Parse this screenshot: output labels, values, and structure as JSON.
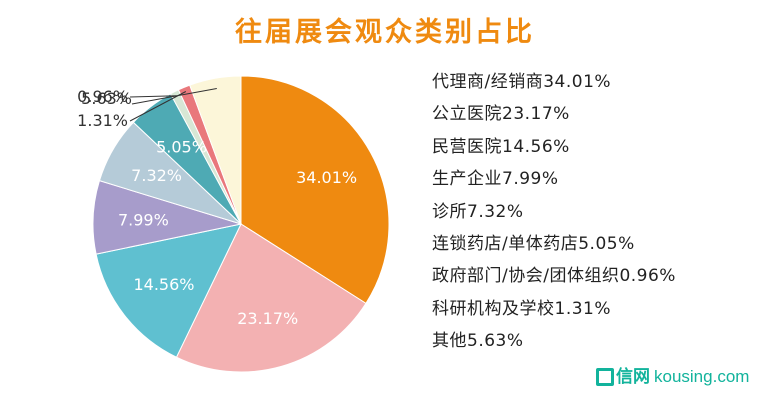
{
  "chart_data": {
    "type": "pie",
    "title": "往届展会观众类别占比",
    "slices": [
      {
        "label": "代理商/经销商",
        "value": 34.01,
        "display": "34.01%",
        "legend": "代理商/经销商34.01%",
        "color": "#ef8a10"
      },
      {
        "label": "公立医院",
        "value": 23.17,
        "display": "23.17%",
        "legend": "公立医院23.17%",
        "color": "#f3b1b2"
      },
      {
        "label": "民营医院",
        "value": 14.56,
        "display": "14.56%",
        "legend": "民营医院14.56%",
        "color": "#5fc0d0"
      },
      {
        "label": "生产企业",
        "value": 7.99,
        "display": "7.99%",
        "legend": "生产企业7.99%",
        "color": "#a79ccb"
      },
      {
        "label": "诊所",
        "value": 7.32,
        "display": "7.32%",
        "legend": "诊所7.32%",
        "color": "#b5cbd8"
      },
      {
        "label": "连锁药店/单体药店",
        "value": 5.05,
        "display": "5.05%",
        "legend": "连锁药店/单体药店5.05%",
        "color": "#4eaab4"
      },
      {
        "label": "政府部门/协会/团体组织",
        "value": 0.96,
        "display": "0.96%",
        "legend": "政府部门/协会/团体组织0.96%",
        "color": "#d7e7d5"
      },
      {
        "label": "科研机构及学校",
        "value": 1.31,
        "display": "1.31%",
        "legend": "科研机构及学校1.31%",
        "color": "#e9787c"
      },
      {
        "label": "其他",
        "value": 5.63,
        "display": "5.63%",
        "legend": "其他5.63%",
        "color": "#fcf6d9"
      }
    ],
    "start_position": "top, clockwise",
    "legend_position": "right"
  },
  "colors": {
    "title": "#ef8a10",
    "label_light": "#ffffff",
    "label_dark": "#333333",
    "leader": "#333333",
    "watermark": "#12b39c"
  },
  "watermark": {
    "icon": "box-icon",
    "brand": "信网",
    "domain": "kousing.com"
  }
}
